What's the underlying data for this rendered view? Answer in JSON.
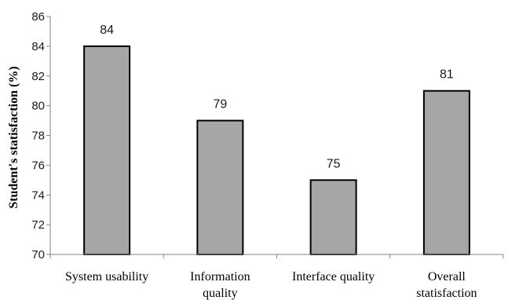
{
  "chart_data": {
    "type": "bar",
    "title": "",
    "xlabel": "",
    "ylabel": "Student's statisfaction (%)",
    "categories": [
      [
        "System usability"
      ],
      [
        "Information",
        "quality"
      ],
      [
        "Interface quality"
      ],
      [
        "Overall",
        "statisfaction"
      ]
    ],
    "values": [
      84,
      79,
      75,
      81
    ],
    "data_labels": [
      "84",
      "79",
      "75",
      "81"
    ],
    "ylim": [
      70,
      86
    ],
    "yticks": [
      70,
      72,
      74,
      76,
      78,
      80,
      82,
      84,
      86
    ],
    "grid": false,
    "legend": "none",
    "colors": {
      "bar_fill": "#a6a6a6",
      "bar_stroke": "#000000",
      "axis": "#868686"
    }
  }
}
